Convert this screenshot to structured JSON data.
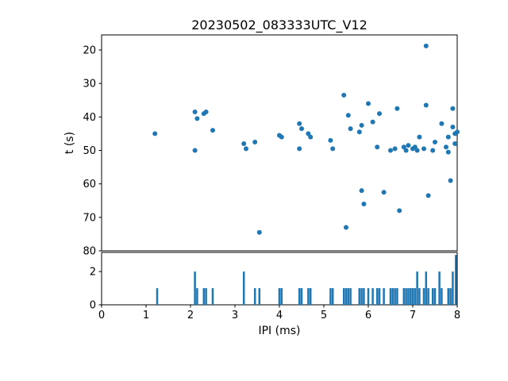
{
  "figure": {
    "title": "20230502_083333UTC_V12",
    "xlabel": "IPI (ms)",
    "ylabel": "t (s)",
    "point_color": "#1f77b4",
    "bar_color": "#1f77b4",
    "axis_color": "#000000",
    "background": "#ffffff"
  },
  "chart_data": [
    {
      "type": "scatter",
      "title": "20230502_083333UTC_V12",
      "xlabel": "",
      "ylabel": "t (s)",
      "xlim": [
        0,
        8
      ],
      "ylim": [
        15.5,
        80
      ],
      "y_inverted": true,
      "x_ticks": [
        0,
        1,
        2,
        3,
        4,
        5,
        6,
        7,
        8
      ],
      "x_tick_labels_visible": false,
      "y_ticks": [
        20,
        30,
        40,
        50,
        60,
        70,
        80
      ],
      "grid": false,
      "points": [
        [
          1.2,
          45.0
        ],
        [
          2.1,
          38.5
        ],
        [
          2.15,
          40.5
        ],
        [
          2.1,
          50.0
        ],
        [
          2.3,
          39.0
        ],
        [
          2.35,
          38.5
        ],
        [
          2.5,
          44.0
        ],
        [
          3.2,
          48.0
        ],
        [
          3.25,
          49.5
        ],
        [
          3.45,
          47.5
        ],
        [
          3.55,
          74.5
        ],
        [
          4.0,
          45.5
        ],
        [
          4.05,
          46.0
        ],
        [
          4.45,
          42.0
        ],
        [
          4.5,
          43.5
        ],
        [
          4.45,
          49.5
        ],
        [
          4.65,
          45.0
        ],
        [
          4.7,
          46.0
        ],
        [
          5.15,
          47.0
        ],
        [
          5.2,
          49.5
        ],
        [
          5.45,
          33.5
        ],
        [
          5.55,
          39.5
        ],
        [
          5.6,
          43.5
        ],
        [
          5.5,
          73.0
        ],
        [
          5.8,
          44.5
        ],
        [
          5.85,
          42.5
        ],
        [
          5.85,
          62.0
        ],
        [
          5.9,
          66.0
        ],
        [
          6.0,
          36.0
        ],
        [
          6.1,
          41.5
        ],
        [
          6.2,
          49.0
        ],
        [
          6.25,
          39.0
        ],
        [
          6.35,
          62.5
        ],
        [
          6.5,
          50.0
        ],
        [
          6.6,
          49.5
        ],
        [
          6.65,
          37.5
        ],
        [
          6.7,
          68.0
        ],
        [
          6.8,
          49.0
        ],
        [
          6.85,
          50.0
        ],
        [
          6.9,
          48.5
        ],
        [
          7.0,
          49.5
        ],
        [
          7.05,
          49.0
        ],
        [
          7.1,
          50.0
        ],
        [
          7.15,
          46.0
        ],
        [
          7.25,
          49.5
        ],
        [
          7.3,
          18.8
        ],
        [
          7.3,
          36.5
        ],
        [
          7.35,
          63.5
        ],
        [
          7.45,
          50.0
        ],
        [
          7.5,
          47.5
        ],
        [
          7.65,
          42.0
        ],
        [
          7.75,
          49.0
        ],
        [
          7.8,
          50.5
        ],
        [
          7.8,
          46.0
        ],
        [
          7.85,
          59.0
        ],
        [
          7.9,
          37.5
        ],
        [
          7.9,
          43.0
        ],
        [
          7.95,
          45.0
        ],
        [
          7.95,
          48.0
        ],
        [
          8.0,
          44.5
        ]
      ]
    },
    {
      "type": "bar",
      "title": "",
      "xlabel": "IPI (ms)",
      "ylabel": "",
      "xlim": [
        0,
        8
      ],
      "ylim": [
        0,
        3.15
      ],
      "x_ticks": [
        0,
        1,
        2,
        3,
        4,
        5,
        6,
        7,
        8
      ],
      "y_ticks": [
        0,
        2
      ],
      "grid": false,
      "bar_width": 0.045,
      "bars": [
        [
          1.25,
          1
        ],
        [
          2.1,
          2
        ],
        [
          2.15,
          1
        ],
        [
          2.3,
          1
        ],
        [
          2.35,
          1
        ],
        [
          2.5,
          1
        ],
        [
          3.2,
          2
        ],
        [
          3.45,
          1
        ],
        [
          3.55,
          1
        ],
        [
          4.0,
          1
        ],
        [
          4.05,
          1
        ],
        [
          4.45,
          1
        ],
        [
          4.5,
          1
        ],
        [
          4.65,
          1
        ],
        [
          4.7,
          1
        ],
        [
          5.15,
          1
        ],
        [
          5.2,
          1
        ],
        [
          5.45,
          1
        ],
        [
          5.5,
          1
        ],
        [
          5.55,
          1
        ],
        [
          5.6,
          1
        ],
        [
          5.8,
          1
        ],
        [
          5.85,
          1
        ],
        [
          5.9,
          1
        ],
        [
          6.0,
          1
        ],
        [
          6.1,
          1
        ],
        [
          6.2,
          1
        ],
        [
          6.25,
          1
        ],
        [
          6.35,
          1
        ],
        [
          6.5,
          1
        ],
        [
          6.55,
          1
        ],
        [
          6.6,
          1
        ],
        [
          6.65,
          1
        ],
        [
          6.8,
          1
        ],
        [
          6.85,
          1
        ],
        [
          6.9,
          1
        ],
        [
          6.95,
          1
        ],
        [
          7.0,
          1
        ],
        [
          7.05,
          1
        ],
        [
          7.1,
          2
        ],
        [
          7.15,
          1
        ],
        [
          7.25,
          1
        ],
        [
          7.3,
          2
        ],
        [
          7.35,
          1
        ],
        [
          7.45,
          1
        ],
        [
          7.5,
          1
        ],
        [
          7.6,
          2
        ],
        [
          7.65,
          1
        ],
        [
          7.8,
          1
        ],
        [
          7.85,
          1
        ],
        [
          7.9,
          2
        ],
        [
          7.97,
          3
        ]
      ]
    }
  ]
}
